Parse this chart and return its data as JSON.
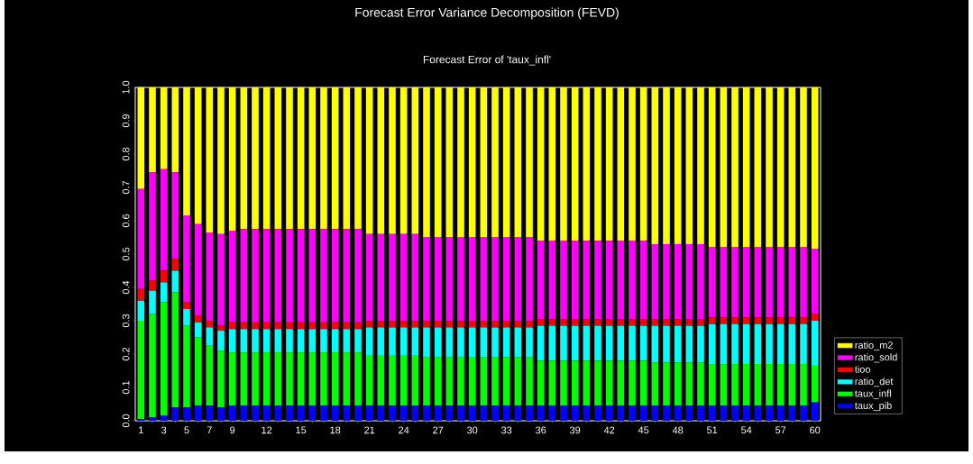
{
  "chart_data": {
    "type": "bar",
    "stacked": true,
    "title": "Forecast Error Variance Decomposition (FEVD)",
    "subtitle": "Forecast Error of 'taux_infl'",
    "categories": [
      "1",
      null,
      "3",
      null,
      "5",
      null,
      "7",
      null,
      "9",
      null,
      null,
      "12",
      null,
      null,
      "15",
      null,
      null,
      "18",
      null,
      null,
      "21",
      null,
      null,
      "24",
      null,
      null,
      "27",
      null,
      null,
      "30",
      null,
      null,
      "33",
      null,
      null,
      "36",
      null,
      null,
      "39",
      null,
      null,
      "42",
      null,
      null,
      "45",
      null,
      null,
      "48",
      null,
      null,
      "51",
      null,
      null,
      "54",
      null,
      null,
      "57",
      null,
      null,
      "60"
    ],
    "ylim": [
      0,
      1
    ],
    "yticks": [
      {
        "value": 0,
        "label": "0.0"
      },
      {
        "value": 0.1,
        "label": "0.1"
      },
      {
        "value": 0.2,
        "label": "0.2"
      },
      {
        "value": 0.3,
        "label": "0.3"
      },
      {
        "value": 0.4,
        "label": "0.4"
      },
      {
        "value": 0.5,
        "label": "0.5"
      },
      {
        "value": 0.6,
        "label": "0.6"
      },
      {
        "value": 0.7,
        "label": "0.7"
      },
      {
        "value": 0.8,
        "label": "0.8"
      },
      {
        "value": 0.9,
        "label": "0.9"
      },
      {
        "value": 1,
        "label": "1.0"
      }
    ],
    "legend": "right",
    "series": [
      {
        "name": "taux_pib",
        "color": "#0000ff",
        "values": [
          0.005,
          0.01,
          0.015,
          0.04,
          0.04,
          0.045,
          0.045,
          0.04,
          0.045,
          0.045,
          0.045,
          0.045,
          0.045,
          0.045,
          0.045,
          0.045,
          0.045,
          0.045,
          0.045,
          0.045,
          0.045,
          0.045,
          0.045,
          0.045,
          0.045,
          0.045,
          0.045,
          0.045,
          0.045,
          0.045,
          0.045,
          0.045,
          0.045,
          0.045,
          0.045,
          0.045,
          0.045,
          0.045,
          0.045,
          0.045,
          0.045,
          0.045,
          0.045,
          0.045,
          0.045,
          0.045,
          0.045,
          0.045,
          0.045,
          0.045,
          0.045,
          0.045,
          0.045,
          0.045,
          0.045,
          0.045,
          0.045,
          0.045,
          0.045,
          0.055
        ]
      },
      {
        "name": "taux_infl",
        "color": "#00ff00",
        "values": [
          0.295,
          0.31,
          0.34,
          0.345,
          0.245,
          0.205,
          0.18,
          0.17,
          0.16,
          0.16,
          0.16,
          0.16,
          0.16,
          0.16,
          0.16,
          0.16,
          0.16,
          0.16,
          0.16,
          0.16,
          0.15,
          0.15,
          0.15,
          0.15,
          0.15,
          0.145,
          0.145,
          0.145,
          0.145,
          0.145,
          0.145,
          0.145,
          0.145,
          0.145,
          0.145,
          0.135,
          0.135,
          0.135,
          0.135,
          0.135,
          0.135,
          0.135,
          0.135,
          0.135,
          0.135,
          0.13,
          0.13,
          0.13,
          0.13,
          0.13,
          0.125,
          0.125,
          0.125,
          0.125,
          0.125,
          0.125,
          0.125,
          0.125,
          0.125,
          0.11
        ]
      },
      {
        "name": "ratio_det",
        "color": "#00ffff",
        "values": [
          0.06,
          0.07,
          0.06,
          0.065,
          0.05,
          0.045,
          0.055,
          0.06,
          0.07,
          0.07,
          0.07,
          0.07,
          0.07,
          0.07,
          0.07,
          0.07,
          0.07,
          0.07,
          0.07,
          0.07,
          0.085,
          0.085,
          0.085,
          0.085,
          0.085,
          0.09,
          0.09,
          0.09,
          0.09,
          0.09,
          0.09,
          0.09,
          0.09,
          0.09,
          0.09,
          0.105,
          0.105,
          0.105,
          0.105,
          0.105,
          0.105,
          0.105,
          0.105,
          0.105,
          0.105,
          0.11,
          0.11,
          0.11,
          0.11,
          0.11,
          0.12,
          0.12,
          0.12,
          0.12,
          0.12,
          0.12,
          0.12,
          0.12,
          0.12,
          0.135
        ]
      },
      {
        "name": "tioo",
        "color": "#ff0000",
        "values": [
          0.035,
          0.03,
          0.035,
          0.035,
          0.02,
          0.02,
          0.02,
          0.015,
          0.02,
          0.02,
          0.02,
          0.02,
          0.02,
          0.02,
          0.02,
          0.02,
          0.02,
          0.02,
          0.02,
          0.02,
          0.02,
          0.02,
          0.02,
          0.02,
          0.02,
          0.02,
          0.02,
          0.02,
          0.02,
          0.02,
          0.02,
          0.02,
          0.02,
          0.02,
          0.02,
          0.02,
          0.02,
          0.02,
          0.02,
          0.02,
          0.02,
          0.02,
          0.02,
          0.02,
          0.02,
          0.02,
          0.02,
          0.02,
          0.02,
          0.02,
          0.02,
          0.02,
          0.02,
          0.02,
          0.02,
          0.02,
          0.02,
          0.02,
          0.02,
          0.02
        ]
      },
      {
        "name": "ratio_sold",
        "color": "#ff00ff",
        "values": [
          0.3,
          0.325,
          0.305,
          0.26,
          0.26,
          0.275,
          0.265,
          0.275,
          0.275,
          0.28,
          0.28,
          0.28,
          0.28,
          0.28,
          0.28,
          0.28,
          0.28,
          0.28,
          0.28,
          0.28,
          0.26,
          0.26,
          0.26,
          0.26,
          0.26,
          0.25,
          0.25,
          0.25,
          0.25,
          0.25,
          0.25,
          0.25,
          0.25,
          0.25,
          0.25,
          0.235,
          0.235,
          0.235,
          0.235,
          0.235,
          0.235,
          0.235,
          0.235,
          0.235,
          0.235,
          0.225,
          0.225,
          0.225,
          0.225,
          0.225,
          0.21,
          0.21,
          0.21,
          0.21,
          0.21,
          0.21,
          0.21,
          0.21,
          0.21,
          0.195
        ]
      },
      {
        "name": "ratio_m2",
        "color": "#ffff00",
        "values": [
          0.305,
          0.255,
          0.245,
          0.255,
          0.385,
          0.41,
          0.435,
          0.44,
          0.43,
          0.425,
          0.425,
          0.425,
          0.425,
          0.425,
          0.425,
          0.425,
          0.425,
          0.425,
          0.425,
          0.425,
          0.44,
          0.44,
          0.44,
          0.44,
          0.44,
          0.45,
          0.45,
          0.45,
          0.45,
          0.45,
          0.45,
          0.45,
          0.45,
          0.45,
          0.45,
          0.46,
          0.46,
          0.46,
          0.46,
          0.46,
          0.46,
          0.46,
          0.46,
          0.46,
          0.46,
          0.47,
          0.47,
          0.47,
          0.47,
          0.47,
          0.48,
          0.48,
          0.48,
          0.48,
          0.48,
          0.48,
          0.48,
          0.48,
          0.48,
          0.485
        ]
      }
    ]
  }
}
